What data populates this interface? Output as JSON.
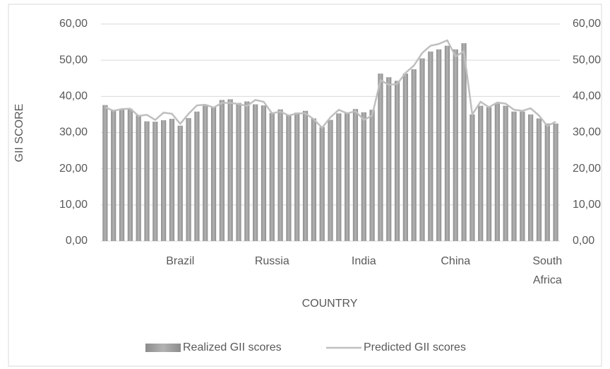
{
  "chart_data": {
    "type": "bar_line",
    "x_label": "COUNTRY",
    "y_label": "GII SCORE",
    "categories": [
      null,
      null,
      null,
      null,
      null,
      null,
      null,
      null,
      null,
      "Brazil",
      null,
      null,
      null,
      null,
      null,
      null,
      null,
      null,
      null,
      null,
      "Russia",
      null,
      null,
      null,
      null,
      null,
      null,
      null,
      null,
      null,
      null,
      "India",
      null,
      null,
      null,
      null,
      null,
      null,
      null,
      null,
      null,
      null,
      "China",
      null,
      null,
      null,
      null,
      null,
      null,
      null,
      null,
      null,
      null,
      "South Africa",
      null
    ],
    "series": [
      {
        "name": "Realized GII scores",
        "color": "#a6a6a6",
        "kind": "bar",
        "values": [
          37.6,
          36.3,
          36.5,
          36.5,
          34.8,
          33.1,
          33.0,
          33.4,
          33.8,
          31.9,
          34.0,
          35.8,
          37.5,
          37.0,
          39.0,
          39.2,
          38.2,
          38.6,
          37.8,
          37.5,
          35.4,
          36.4,
          34.9,
          35.5,
          36.0,
          33.9,
          31.5,
          33.5,
          35.3,
          35.6,
          36.5,
          35.6,
          36.3,
          46.3,
          45.3,
          44.3,
          46.3,
          47.5,
          50.5,
          52.4,
          53.0,
          54.0,
          53.0,
          54.7,
          35.0,
          37.4,
          37.0,
          38.0,
          37.4,
          35.8,
          35.8,
          35.0,
          33.9,
          32.5,
          32.5
        ]
      },
      {
        "name": "Predicted GII scores",
        "color": "#bfbfbf",
        "kind": "line",
        "values": [
          37.0,
          36.0,
          36.5,
          36.6,
          34.6,
          34.9,
          33.5,
          35.5,
          35.2,
          32.4,
          35.2,
          37.5,
          37.7,
          36.9,
          38.2,
          38.2,
          37.9,
          37.3,
          39.0,
          38.5,
          35.3,
          35.8,
          34.7,
          35.3,
          35.3,
          33.7,
          31.3,
          34.2,
          36.3,
          35.3,
          35.9,
          33.5,
          34.7,
          44.5,
          43.2,
          43.4,
          46.5,
          48.5,
          52.0,
          54.0,
          54.5,
          55.5,
          51.0,
          52.5,
          35.0,
          38.5,
          37.0,
          38.3,
          38.0,
          36.3,
          36.0,
          36.7,
          34.7,
          31.8,
          33.0
        ]
      }
    ],
    "ylim": [
      0,
      60
    ],
    "yticks": [
      {
        "value": 0,
        "label": "0,00"
      },
      {
        "value": 10,
        "label": "10,00"
      },
      {
        "value": 20,
        "label": "20,00"
      },
      {
        "value": 30,
        "label": "30,00"
      },
      {
        "value": 40,
        "label": "40,00"
      },
      {
        "value": 50,
        "label": "50,00"
      },
      {
        "value": 60,
        "label": "60,00"
      }
    ],
    "y2lim": [
      0,
      60
    ],
    "y2ticks": [
      {
        "value": 0,
        "label": "0,00"
      },
      {
        "value": 10,
        "label": "10,00"
      },
      {
        "value": 20,
        "label": "20,00"
      },
      {
        "value": 30,
        "label": "30,00"
      },
      {
        "value": 40,
        "label": "40,00"
      },
      {
        "value": 50,
        "label": "50,00"
      },
      {
        "value": 60,
        "label": "60,00"
      }
    ],
    "grid": true,
    "legend": "bottom"
  }
}
